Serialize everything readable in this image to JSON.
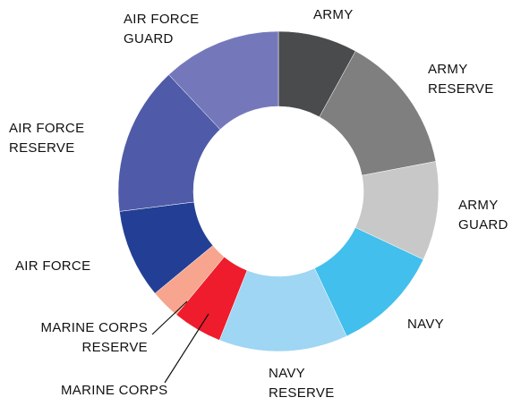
{
  "chart_data": {
    "type": "donut",
    "categories": [
      "ARMY",
      "ARMY RESERVE",
      "ARMY GUARD",
      "NAVY",
      "NAVY RESERVE",
      "MARINE CORPS",
      "MARINE CORPS RESERVE",
      "AIR FORCE",
      "AIR FORCE RESERVE",
      "AIR FORCE GUARD"
    ],
    "values": [
      8,
      14,
      10,
      11,
      13,
      5,
      3,
      9,
      15,
      12
    ],
    "colors": [
      "#4a4b4d",
      "#807f80",
      "#c9c8c8",
      "#42bfec",
      "#9ed6f3",
      "#ee1c2c",
      "#f7a58e",
      "#233f95",
      "#4f5ba8",
      "#7478bb"
    ]
  }
}
